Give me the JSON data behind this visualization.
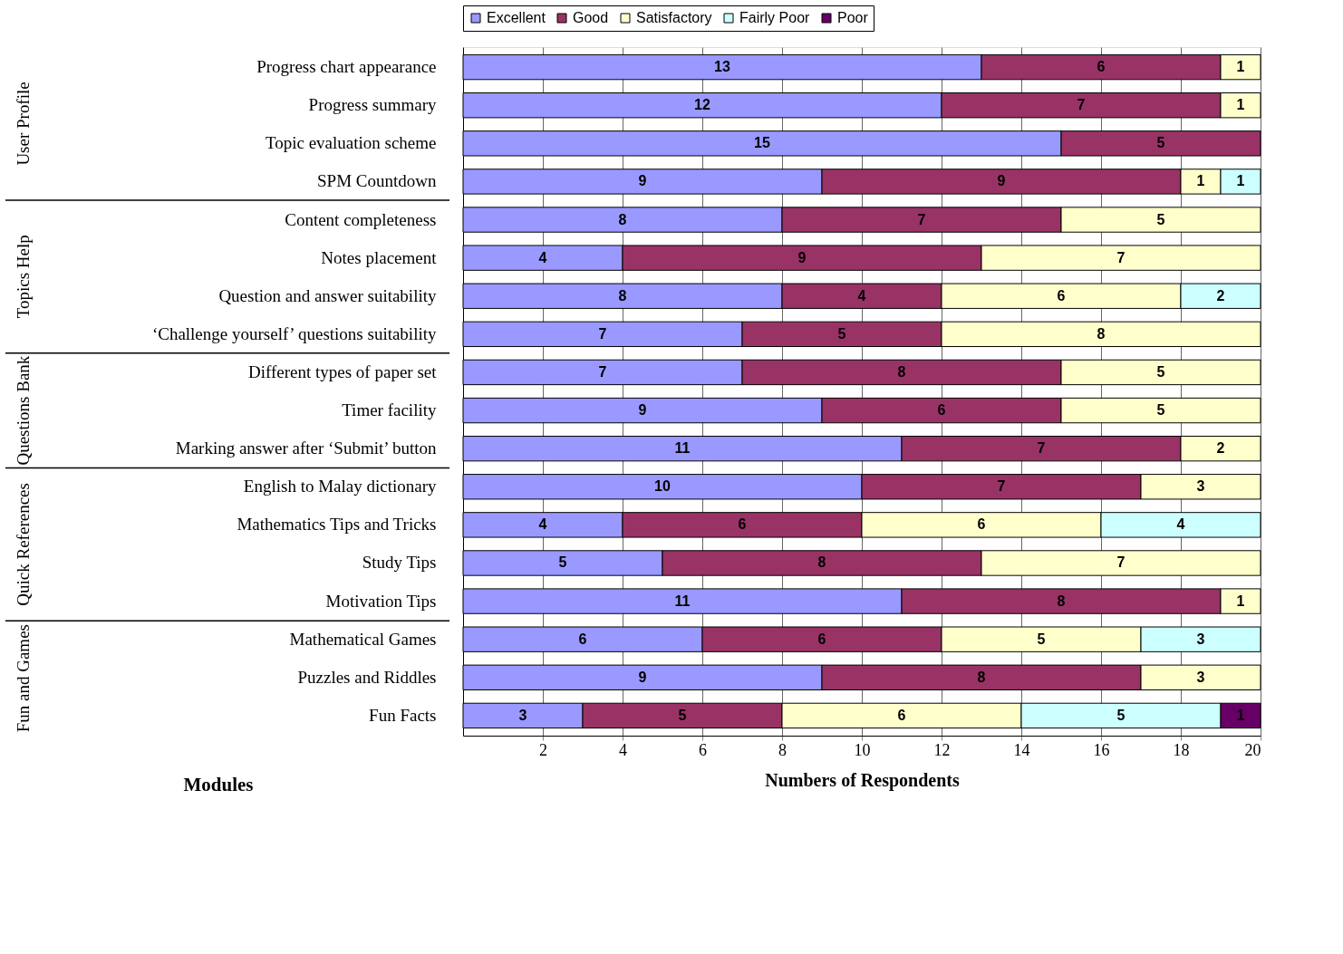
{
  "chart_data": {
    "type": "bar",
    "orientation": "horizontal",
    "stacked": true,
    "xlabel": "Numbers of Respondents",
    "ylabel": "Modules",
    "categories": [
      "Progress chart appearance",
      "Progress summary",
      "Topic evaluation scheme",
      "SPM Countdown",
      "Content completeness",
      "Notes placement",
      "Question and answer suitability",
      "‘Challenge yourself’ questions suitability",
      "Different types of paper set",
      "Timer facility",
      "Marking answer after ‘Submit’ button",
      "English to Malay dictionary",
      "Mathematics Tips and Tricks",
      "Study Tips",
      "Motivation Tips",
      "Mathematical Games",
      "Puzzles and Riddles",
      "Fun Facts"
    ],
    "series": [
      {
        "name": "Excellent",
        "color": "#9999ff",
        "values": [
          13,
          12,
          15,
          9,
          8,
          4,
          8,
          7,
          7,
          9,
          11,
          10,
          4,
          5,
          11,
          6,
          9,
          3
        ]
      },
      {
        "name": "Good",
        "color": "#993366",
        "values": [
          6,
          7,
          5,
          9,
          7,
          9,
          4,
          5,
          8,
          6,
          7,
          7,
          6,
          8,
          8,
          6,
          8,
          5
        ]
      },
      {
        "name": "Satisfactory",
        "color": "#ffffcc",
        "values": [
          1,
          1,
          null,
          1,
          5,
          7,
          6,
          8,
          5,
          5,
          2,
          3,
          6,
          7,
          1,
          5,
          3,
          6
        ]
      },
      {
        "name": "Fairly Poor",
        "color": "#ccffff",
        "values": [
          null,
          null,
          null,
          1,
          null,
          null,
          2,
          null,
          null,
          null,
          null,
          null,
          4,
          null,
          null,
          3,
          null,
          5
        ]
      },
      {
        "name": "Poor",
        "color": "#660066",
        "values": [
          null,
          null,
          null,
          null,
          null,
          null,
          null,
          null,
          null,
          null,
          null,
          null,
          null,
          null,
          null,
          null,
          null,
          1
        ]
      }
    ],
    "xlim": [
      0,
      20
    ],
    "xticks": [
      2,
      4,
      6,
      8,
      10,
      12,
      14,
      16,
      18,
      20
    ],
    "grid": "x",
    "legend": "top",
    "data_labels": true,
    "annotations": [
      "User Profile",
      "Topics Help",
      "Questions Bank",
      "Quick References",
      "Fun and Games"
    ]
  }
}
